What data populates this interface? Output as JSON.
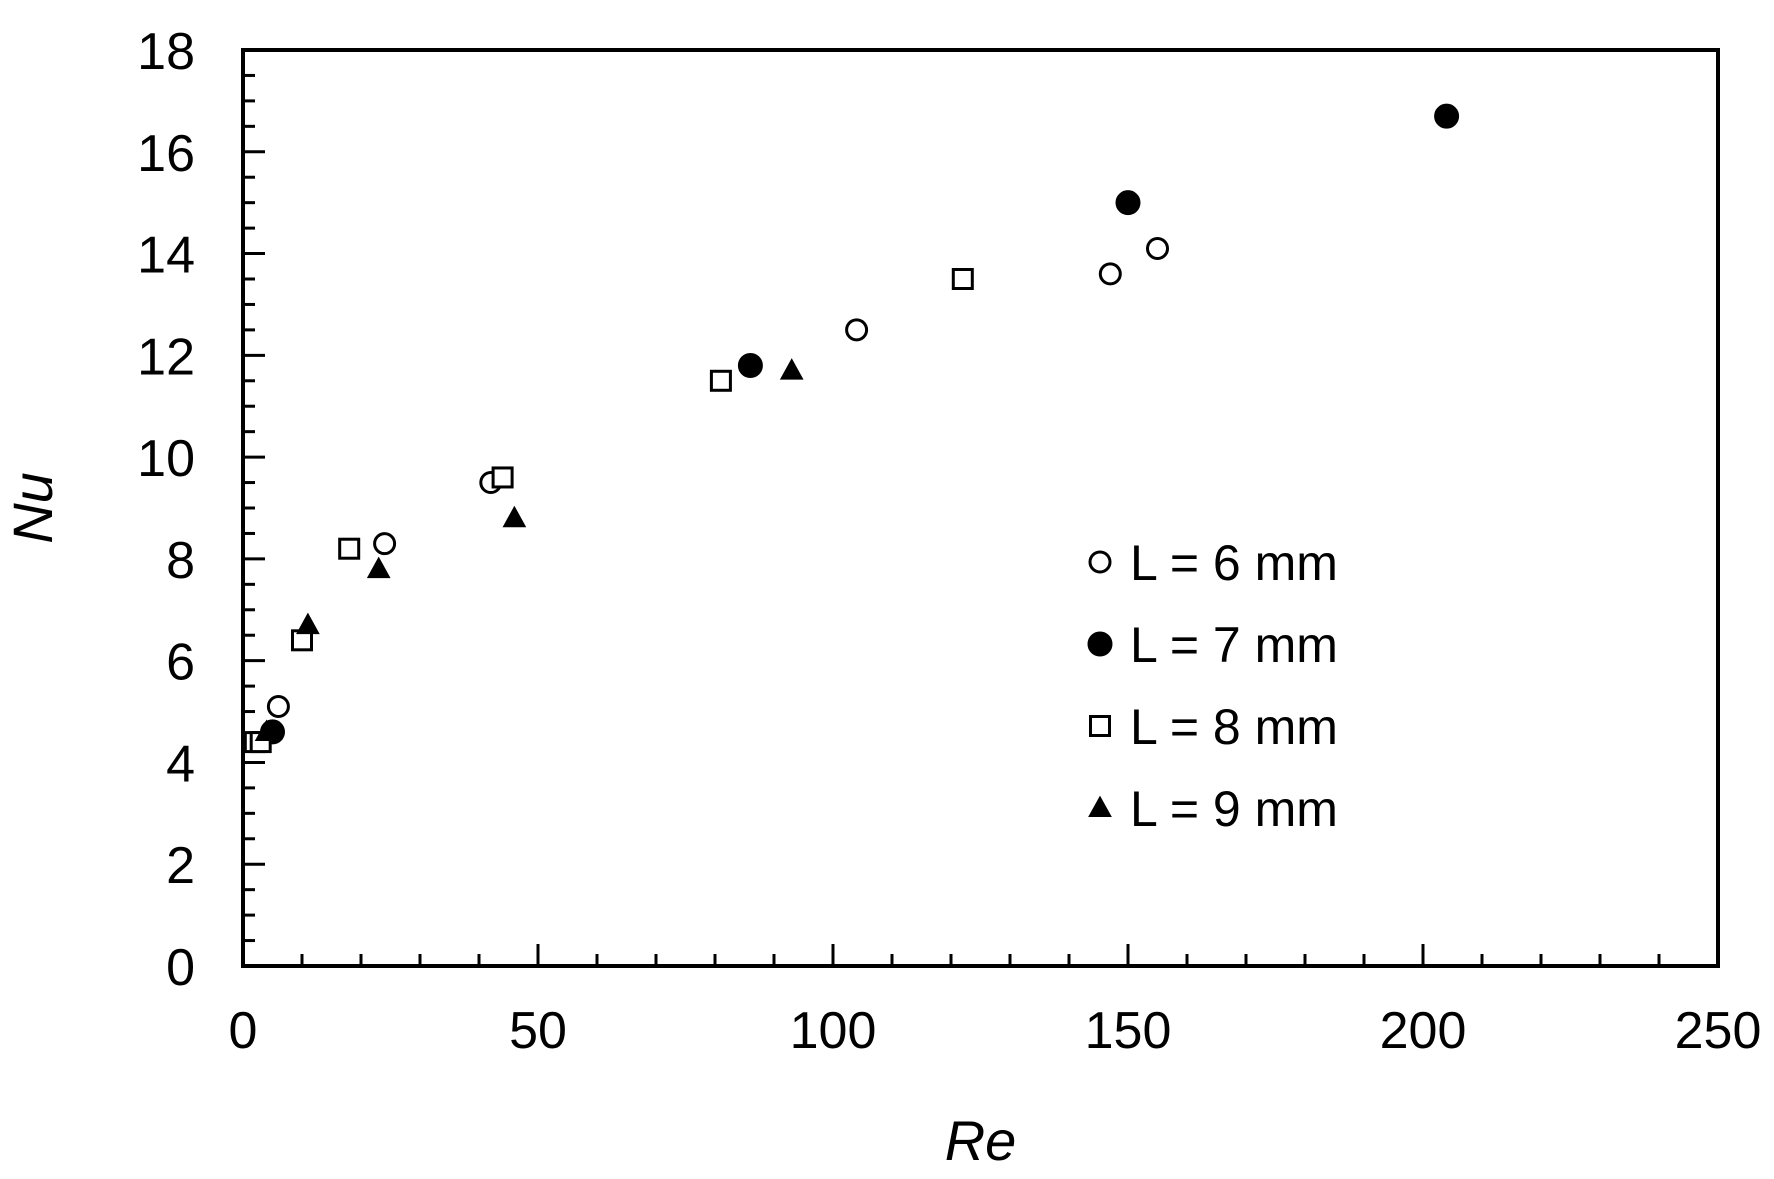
{
  "chart_data": {
    "type": "scatter",
    "title": "",
    "xlabel": "Re",
    "ylabel": "Nu",
    "xlim": [
      0,
      250
    ],
    "ylim": [
      0,
      18
    ],
    "xticks": [
      0,
      50,
      100,
      150,
      200,
      250
    ],
    "yticks": [
      0,
      2,
      4,
      6,
      8,
      10,
      12,
      14,
      16,
      18
    ],
    "x_minor_step": 10,
    "y_minor_step": 0.5,
    "grid": false,
    "legend_position": "right",
    "series": [
      {
        "name": "L = 6 mm",
        "marker": "circle-open",
        "color": "#000000",
        "points": [
          [
            6,
            5.1
          ],
          [
            24,
            8.3
          ],
          [
            42,
            9.5
          ],
          [
            104,
            12.5
          ],
          [
            147,
            13.6
          ],
          [
            155,
            14.1
          ]
        ]
      },
      {
        "name": "L = 7 mm",
        "marker": "circle-filled",
        "color": "#000000",
        "points": [
          [
            5,
            4.6
          ],
          [
            86,
            11.8
          ],
          [
            150,
            15.0
          ],
          [
            204,
            16.7
          ]
        ]
      },
      {
        "name": "L = 8 mm",
        "marker": "square-open",
        "color": "#000000",
        "points": [
          [
            2,
            4.4
          ],
          [
            3,
            4.4
          ],
          [
            10,
            6.4
          ],
          [
            18,
            8.2
          ],
          [
            44,
            9.6
          ],
          [
            81,
            11.5
          ],
          [
            122,
            13.5
          ]
        ]
      },
      {
        "name": "L = 9 mm",
        "marker": "triangle-filled",
        "color": "#000000",
        "points": [
          [
            4,
            4.6
          ],
          [
            11,
            6.7
          ],
          [
            23,
            7.8
          ],
          [
            46,
            8.8
          ],
          [
            93,
            11.7
          ]
        ]
      }
    ]
  }
}
